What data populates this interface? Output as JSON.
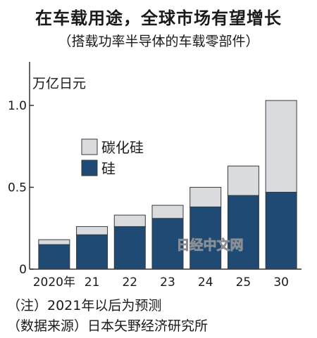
{
  "chart_data": {
    "type": "bar",
    "stacked": true,
    "title": "在车载用途，全球市场有望增长",
    "subtitle": "（搭载功率半导体的车载零部件）",
    "ylabel": "万亿日元",
    "categories": [
      "2020年",
      "21",
      "22",
      "23",
      "24",
      "25",
      "30"
    ],
    "yticks": [
      "0",
      "0.5",
      "1.0"
    ],
    "ylim": [
      0,
      1.3
    ],
    "grid": false,
    "legend_position": "center-left",
    "series": [
      {
        "name": "硅",
        "color": "#1e4a73",
        "values": [
          0.15,
          0.21,
          0.26,
          0.31,
          0.38,
          0.45,
          0.47
        ]
      },
      {
        "name": "碳化硅",
        "color": "#dadbde",
        "values": [
          0.03,
          0.05,
          0.07,
          0.08,
          0.12,
          0.18,
          0.56
        ]
      }
    ],
    "watermark": "日经中文网",
    "notes": [
      "（注）2021年以后为预测",
      "（数据来源）日本矢野经济研究所"
    ]
  }
}
